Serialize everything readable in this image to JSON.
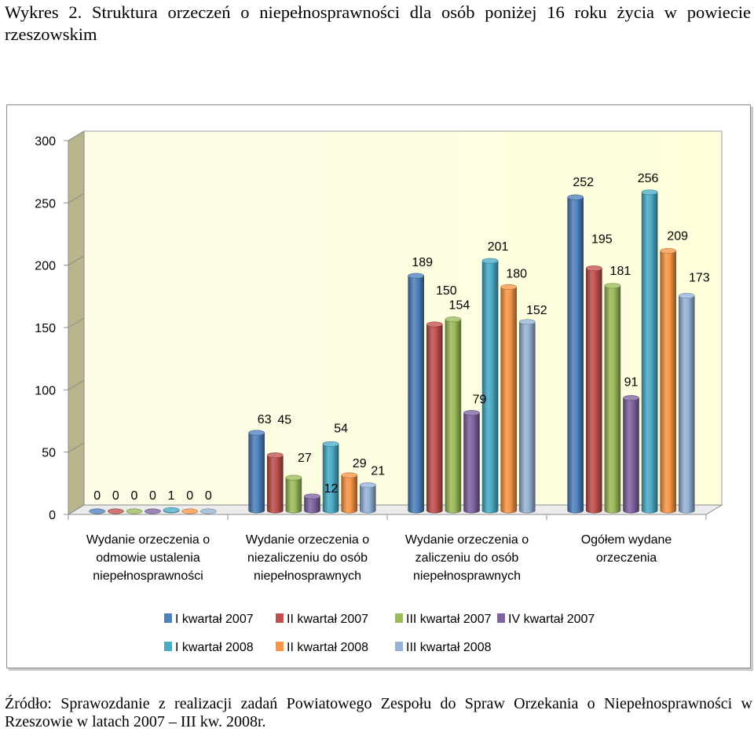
{
  "title": "Wykres 2. Struktura orzeczeń o niepełnosprawności dla osób poniżej 16 roku życia w powiecie rzeszowskim",
  "source": "Źródło: Sprawozdanie z realizacji zadań Powiatowego Zespołu do Spraw Orzekania o Niepełnosprawności w Rzeszowie w latach 2007 – III kw. 2008r.",
  "chart_data": {
    "type": "bar",
    "title": "",
    "xlabel": "",
    "ylabel": "",
    "ylim": [
      0,
      300
    ],
    "yticks": [
      0,
      50,
      100,
      150,
      200,
      250,
      300
    ],
    "grid": false,
    "legend_position": "bottom",
    "categories": [
      [
        "Wydanie orzeczenia o",
        "odmowie ustalenia",
        "niepełnosprawności"
      ],
      [
        "Wydanie orzeczenia o",
        "niezaliczeniu do osób",
        "niepełnosprawnych"
      ],
      [
        "Wydanie orzeczenia o",
        "zaliczeniu do osób",
        "niepełnosprawnych"
      ],
      [
        "Ogółem wydane",
        "orzeczenia"
      ]
    ],
    "series": [
      {
        "name": "I kwartał 2007",
        "color": "#4f81bd",
        "values": [
          0,
          63,
          189,
          252
        ]
      },
      {
        "name": "II kwartał 2007",
        "color": "#c0504d",
        "values": [
          0,
          45,
          150,
          195
        ]
      },
      {
        "name": "III kwartał 2007",
        "color": "#9bbb59",
        "values": [
          0,
          27,
          154,
          181
        ]
      },
      {
        "name": "IV kwartał 2007",
        "color": "#8064a2",
        "values": [
          0,
          12,
          79,
          91
        ]
      },
      {
        "name": "I kwartał 2008",
        "color": "#4bacc6",
        "values": [
          1,
          54,
          201,
          256
        ]
      },
      {
        "name": "II kwartał 2008",
        "color": "#f79646",
        "values": [
          0,
          29,
          180,
          209
        ]
      },
      {
        "name": "III kwartał 2008",
        "color": "#95b3d7",
        "values": [
          0,
          21,
          152,
          173
        ]
      }
    ]
  }
}
